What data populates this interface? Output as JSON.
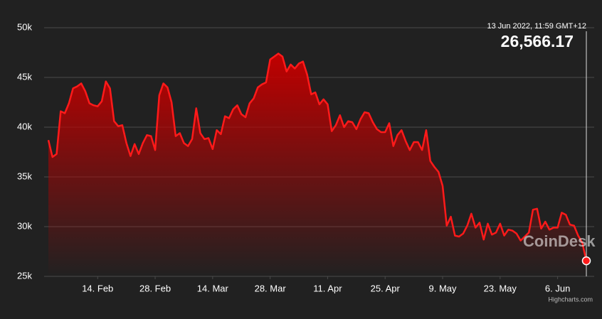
{
  "chart_data": {
    "type": "area",
    "tooltip": {
      "date": "13 Jun 2022, 11:59 GMT+12",
      "value": "26,566.17"
    },
    "watermark": "CoinDesk",
    "credits": "Highcharts.com",
    "color": "#ff1a1a",
    "grid": true,
    "x": [
      "2. Feb",
      "3. Feb",
      "4. Feb",
      "5. Feb",
      "6. Feb",
      "7. Feb",
      "8. Feb",
      "9. Feb",
      "10. Feb",
      "11. Feb",
      "12. Feb",
      "13. Feb",
      "14. Feb",
      "15. Feb",
      "16. Feb",
      "17. Feb",
      "18. Feb",
      "19. Feb",
      "20. Feb",
      "21. Feb",
      "22. Feb",
      "23. Feb",
      "24. Feb",
      "25. Feb",
      "26. Feb",
      "27. Feb",
      "28. Feb",
      "1. Mar",
      "2. Mar",
      "3. Mar",
      "4. Mar",
      "5. Mar",
      "6. Mar",
      "7. Mar",
      "8. Mar",
      "9. Mar",
      "10. Mar",
      "11. Mar",
      "12. Mar",
      "13. Mar",
      "14. Mar",
      "15. Mar",
      "16. Mar",
      "17. Mar",
      "18. Mar",
      "19. Mar",
      "20. Mar",
      "21. Mar",
      "22. Mar",
      "23. Mar",
      "24. Mar",
      "25. Mar",
      "26. Mar",
      "27. Mar",
      "28. Mar",
      "29. Mar",
      "30. Mar",
      "31. Mar",
      "1. Apr",
      "2. Apr",
      "3. Apr",
      "4. Apr",
      "5. Apr",
      "6. Apr",
      "7. Apr",
      "8. Apr",
      "9. Apr",
      "10. Apr",
      "11. Apr",
      "12. Apr",
      "13. Apr",
      "14. Apr",
      "15. Apr",
      "16. Apr",
      "17. Apr",
      "18. Apr",
      "19. Apr",
      "20. Apr",
      "21. Apr",
      "22. Apr",
      "23. Apr",
      "24. Apr",
      "25. Apr",
      "26. Apr",
      "27. Apr",
      "28. Apr",
      "29. Apr",
      "30. Apr",
      "1. May",
      "2. May",
      "3. May",
      "4. May",
      "5. May",
      "6. May",
      "7. May",
      "8. May",
      "9. May",
      "10. May",
      "11. May",
      "12. May",
      "13. May",
      "14. May",
      "15. May",
      "16. May",
      "17. May",
      "18. May",
      "19. May",
      "20. May",
      "21. May",
      "22. May",
      "23. May",
      "24. May",
      "25. May",
      "26. May",
      "27. May",
      "28. May",
      "29. May",
      "30. May",
      "31. May",
      "1. Jun",
      "2. Jun",
      "3. Jun",
      "4. Jun",
      "5. Jun",
      "6. Jun",
      "7. Jun",
      "8. Jun",
      "9. Jun",
      "10. Jun",
      "11. Jun",
      "12. Jun",
      "13. Jun"
    ],
    "values": [
      38700,
      37000,
      37300,
      41600,
      41400,
      42400,
      43900,
      44100,
      44400,
      43600,
      42400,
      42200,
      42100,
      42600,
      44600,
      43900,
      40600,
      40100,
      40200,
      38400,
      37100,
      38300,
      37300,
      38400,
      39200,
      39100,
      37700,
      43200,
      44400,
      44000,
      42500,
      39100,
      39400,
      38400,
      38100,
      38800,
      41900,
      39400,
      38800,
      38900,
      37800,
      39700,
      39300,
      41100,
      40900,
      41800,
      42200,
      41300,
      41000,
      42400,
      42900,
      44000,
      44300,
      44500,
      46800,
      47100,
      47400,
      47100,
      45600,
      46300,
      45900,
      46400,
      46600,
      45300,
      43300,
      43500,
      42300,
      42800,
      42300,
      39600,
      40200,
      41200,
      40000,
      40600,
      40500,
      39800,
      40800,
      41500,
      41400,
      40500,
      39800,
      39500,
      39500,
      40400,
      38100,
      39200,
      39700,
      38600,
      37700,
      38500,
      38500,
      37700,
      39700,
      36600,
      36000,
      35500,
      34100,
      30100,
      31000,
      29100,
      29000,
      29300,
      30100,
      31300,
      29900,
      30400,
      28700,
      30300,
      29200,
      29400,
      30300,
      29100,
      29700,
      29600,
      29300,
      28600,
      29000,
      29400,
      31700,
      31800,
      29800,
      30500,
      29700,
      29900,
      29900,
      31400,
      31200,
      30200,
      30100,
      29100,
      28400,
      26566.17
    ],
    "xticks": [
      "14. Feb",
      "28. Feb",
      "14. Mar",
      "28. Mar",
      "11. Apr",
      "25. Apr",
      "9. May",
      "23. May",
      "6. Jun"
    ],
    "ylim": [
      25000,
      50000
    ],
    "yticks": [
      {
        "value": 25000,
        "label": "25k"
      },
      {
        "value": 30000,
        "label": "30k"
      },
      {
        "value": 35000,
        "label": "35k"
      },
      {
        "value": 40000,
        "label": "40k"
      },
      {
        "value": 45000,
        "label": "45k"
      },
      {
        "value": 50000,
        "label": "50k"
      }
    ]
  }
}
